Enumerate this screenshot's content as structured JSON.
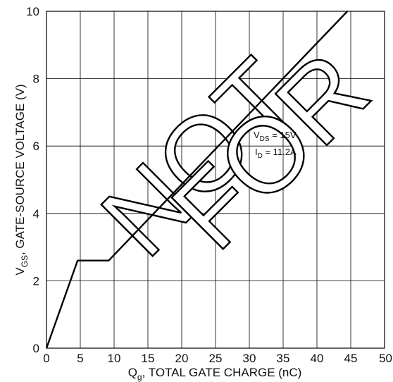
{
  "chart_data": {
    "type": "line",
    "title": "",
    "xlabel": {
      "main": "Q",
      "sub": "g",
      "rest": ", TOTAL GATE CHARGE (nC)"
    },
    "ylabel": {
      "main": "V",
      "sub": "GS",
      "rest": ", GATE-SOURCE VOLTAGE (V)"
    },
    "xlim": [
      0,
      50
    ],
    "ylim": [
      0,
      10
    ],
    "xticks": [
      0,
      5,
      10,
      15,
      20,
      25,
      30,
      35,
      40,
      45,
      50
    ],
    "yticks": [
      0,
      2,
      4,
      6,
      8,
      10
    ],
    "grid": true,
    "series": [
      {
        "x": [
          0,
          4.6,
          9.2,
          44.5
        ],
        "y": [
          0,
          2.6,
          2.6,
          10
        ]
      }
    ],
    "annotations": [
      {
        "main": "V",
        "sub": "DS",
        "rest": " = 15V"
      },
      {
        "main": "I",
        "sub": "D",
        "rest": " = 11.2A"
      }
    ],
    "watermark": [
      "NOT",
      "FOR"
    ]
  }
}
